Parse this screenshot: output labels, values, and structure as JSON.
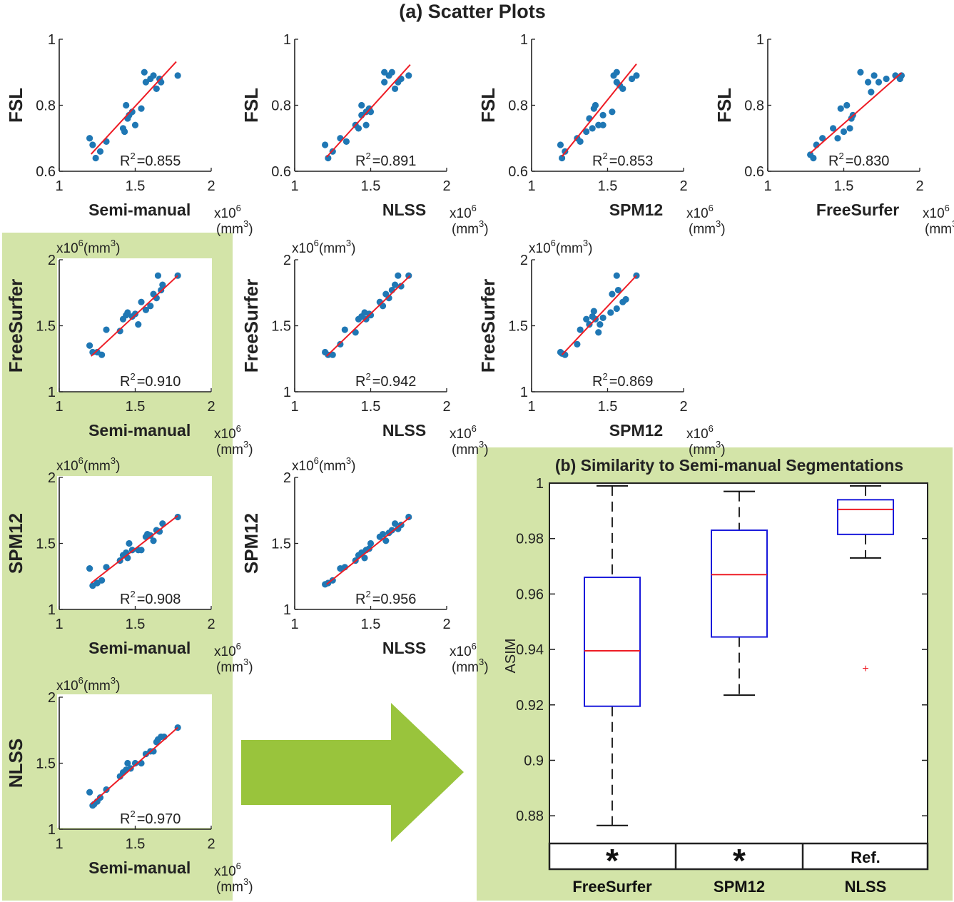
{
  "figure": {
    "title_a": "(a) Scatter Plots",
    "title_b": "(b) Similarity to Semi-manual Segmentations",
    "colors": {
      "panel_background": "#d3e4a8",
      "arrow": "#99c43c",
      "points": "#1f77b4",
      "fit_line": "#ee1c25",
      "box": "#1a1adb",
      "median": "#ee1c25",
      "whisker": "#111111"
    }
  },
  "chart_data": [
    {
      "id": "fsl-vs-semimanual",
      "type": "scatter",
      "xlabel": "Semi-manual",
      "ylabel": "FSL",
      "xunit_1": "x10",
      "xunit_exp": "6",
      "xunit_2": "(mm",
      "xunit_3": ")",
      "xlim": [
        1,
        2
      ],
      "ylim": [
        0.6,
        1
      ],
      "xticks": [
        "1",
        "1.5",
        "2"
      ],
      "yticks": [
        "0.6",
        "0.8",
        "1"
      ],
      "r2_label": "R",
      "r2_exp": "2",
      "r2_value": "=0.855",
      "fit": [
        [
          1.21,
          0.652
        ],
        [
          1.77,
          0.932
        ]
      ],
      "points": [
        [
          1.2,
          0.7
        ],
        [
          1.22,
          0.68
        ],
        [
          1.24,
          0.64
        ],
        [
          1.27,
          0.66
        ],
        [
          1.31,
          0.69
        ],
        [
          1.42,
          0.73
        ],
        [
          1.43,
          0.72
        ],
        [
          1.44,
          0.8
        ],
        [
          1.45,
          0.76
        ],
        [
          1.46,
          0.77
        ],
        [
          1.48,
          0.78
        ],
        [
          1.5,
          0.74
        ],
        [
          1.54,
          0.79
        ],
        [
          1.56,
          0.9
        ],
        [
          1.57,
          0.87
        ],
        [
          1.6,
          0.88
        ],
        [
          1.62,
          0.89
        ],
        [
          1.64,
          0.85
        ],
        [
          1.66,
          0.88
        ],
        [
          1.67,
          0.87
        ],
        [
          1.78,
          0.89
        ]
      ]
    },
    {
      "id": "fsl-vs-nlss",
      "type": "scatter",
      "xlabel": "NLSS",
      "ylabel": "FSL",
      "xunit_1": "x10",
      "xunit_exp": "6",
      "xunit_2": "(mm",
      "xunit_3": ")",
      "xlim": [
        1,
        2
      ],
      "ylim": [
        0.6,
        1
      ],
      "xticks": [
        "1",
        "1.5",
        "2"
      ],
      "yticks": [
        "0.6",
        "0.8",
        "1"
      ],
      "r2_label": "R",
      "r2_exp": "2",
      "r2_value": "=0.891",
      "fit": [
        [
          1.21,
          0.643
        ],
        [
          1.76,
          0.923
        ]
      ],
      "points": [
        [
          1.2,
          0.68
        ],
        [
          1.22,
          0.64
        ],
        [
          1.25,
          0.66
        ],
        [
          1.3,
          0.7
        ],
        [
          1.34,
          0.69
        ],
        [
          1.4,
          0.74
        ],
        [
          1.42,
          0.73
        ],
        [
          1.44,
          0.77
        ],
        [
          1.44,
          0.8
        ],
        [
          1.47,
          0.74
        ],
        [
          1.47,
          0.78
        ],
        [
          1.49,
          0.79
        ],
        [
          1.5,
          0.78
        ],
        [
          1.59,
          0.87
        ],
        [
          1.59,
          0.9
        ],
        [
          1.62,
          0.89
        ],
        [
          1.64,
          0.9
        ],
        [
          1.66,
          0.85
        ],
        [
          1.68,
          0.87
        ],
        [
          1.7,
          0.88
        ],
        [
          1.75,
          0.89
        ]
      ]
    },
    {
      "id": "fsl-vs-spm12",
      "type": "scatter",
      "xlabel": "SPM12",
      "ylabel": "FSL",
      "xunit_1": "x10",
      "xunit_exp": "6",
      "xunit_2": "(mm",
      "xunit_3": ")",
      "xlim": [
        1,
        2
      ],
      "ylim": [
        0.6,
        1
      ],
      "xticks": [
        "1",
        "1.5",
        "2"
      ],
      "yticks": [
        "0.6",
        "0.8",
        "1"
      ],
      "r2_label": "R",
      "r2_exp": "2",
      "r2_value": "=0.853",
      "fit": [
        [
          1.2,
          0.645
        ],
        [
          1.69,
          0.925
        ]
      ],
      "points": [
        [
          1.19,
          0.68
        ],
        [
          1.2,
          0.64
        ],
        [
          1.22,
          0.66
        ],
        [
          1.3,
          0.7
        ],
        [
          1.32,
          0.69
        ],
        [
          1.36,
          0.72
        ],
        [
          1.38,
          0.76
        ],
        [
          1.4,
          0.73
        ],
        [
          1.41,
          0.79
        ],
        [
          1.42,
          0.8
        ],
        [
          1.44,
          0.74
        ],
        [
          1.47,
          0.77
        ],
        [
          1.47,
          0.74
        ],
        [
          1.53,
          0.78
        ],
        [
          1.54,
          0.89
        ],
        [
          1.56,
          0.9
        ],
        [
          1.56,
          0.87
        ],
        [
          1.58,
          0.86
        ],
        [
          1.6,
          0.85
        ],
        [
          1.66,
          0.88
        ],
        [
          1.69,
          0.89
        ]
      ]
    },
    {
      "id": "fsl-vs-freesurfer",
      "type": "scatter",
      "xlabel": "FreeSurfer",
      "ylabel": "FSL",
      "xunit_1": "x10",
      "xunit_exp": "6",
      "xunit_2": "(mm",
      "xunit_3": ")",
      "xlim": [
        1,
        2
      ],
      "ylim": [
        0.6,
        1
      ],
      "xticks": [
        "1",
        "1.5",
        "2"
      ],
      "yticks": [
        "0.6",
        "0.8",
        "1"
      ],
      "r2_label": "R",
      "r2_exp": "2",
      "r2_value": "=0.830",
      "fit": [
        [
          1.28,
          0.655
        ],
        [
          1.88,
          0.898
        ]
      ],
      "points": [
        [
          1.28,
          0.65
        ],
        [
          1.3,
          0.64
        ],
        [
          1.32,
          0.68
        ],
        [
          1.36,
          0.7
        ],
        [
          1.43,
          0.73
        ],
        [
          1.46,
          0.7
        ],
        [
          1.48,
          0.79
        ],
        [
          1.5,
          0.72
        ],
        [
          1.52,
          0.8
        ],
        [
          1.54,
          0.73
        ],
        [
          1.55,
          0.76
        ],
        [
          1.56,
          0.77
        ],
        [
          1.61,
          0.9
        ],
        [
          1.66,
          0.87
        ],
        [
          1.68,
          0.84
        ],
        [
          1.7,
          0.89
        ],
        [
          1.73,
          0.87
        ],
        [
          1.78,
          0.88
        ],
        [
          1.84,
          0.89
        ],
        [
          1.87,
          0.88
        ],
        [
          1.88,
          0.89
        ]
      ]
    },
    {
      "id": "freesurfer-vs-semimanual",
      "type": "scatter",
      "xlabel": "Semi-manual",
      "ylabel": "FreeSurfer",
      "xunit_1": "x10",
      "xunit_exp": "6",
      "xunit_2": "(mm",
      "xunit_3": ")",
      "yunit_1": "x10",
      "yunit_exp": "6",
      "yunit_2": "(mm",
      "yunit_3": ")",
      "xlim": [
        1,
        2
      ],
      "ylim": [
        1,
        2
      ],
      "xticks": [
        "1",
        "1.5",
        "2"
      ],
      "yticks": [
        "1",
        "1.5",
        "2"
      ],
      "r2_label": "R",
      "r2_exp": "2",
      "r2_value": "=0.910",
      "fit": [
        [
          1.21,
          1.27
        ],
        [
          1.78,
          1.88
        ]
      ],
      "points": [
        [
          1.2,
          1.35
        ],
        [
          1.22,
          1.3
        ],
        [
          1.25,
          1.3
        ],
        [
          1.28,
          1.28
        ],
        [
          1.31,
          1.47
        ],
        [
          1.4,
          1.46
        ],
        [
          1.42,
          1.55
        ],
        [
          1.44,
          1.58
        ],
        [
          1.45,
          1.6
        ],
        [
          1.48,
          1.57
        ],
        [
          1.5,
          1.59
        ],
        [
          1.52,
          1.51
        ],
        [
          1.54,
          1.68
        ],
        [
          1.57,
          1.62
        ],
        [
          1.6,
          1.65
        ],
        [
          1.62,
          1.74
        ],
        [
          1.64,
          1.71
        ],
        [
          1.65,
          1.88
        ],
        [
          1.67,
          1.77
        ],
        [
          1.68,
          1.81
        ],
        [
          1.78,
          1.88
        ]
      ]
    },
    {
      "id": "freesurfer-vs-nlss",
      "type": "scatter",
      "xlabel": "NLSS",
      "ylabel": "FreeSurfer",
      "xunit_1": "x10",
      "xunit_exp": "6",
      "xunit_2": "(mm",
      "xunit_3": ")",
      "yunit_1": "x10",
      "yunit_exp": "6",
      "yunit_2": "(mm",
      "yunit_3": ")",
      "xlim": [
        1,
        2
      ],
      "ylim": [
        1,
        2
      ],
      "xticks": [
        "1",
        "1.5",
        "2"
      ],
      "yticks": [
        "1",
        "1.5",
        "2"
      ],
      "r2_label": "R",
      "r2_exp": "2",
      "r2_value": "=0.942",
      "fit": [
        [
          1.21,
          1.27
        ],
        [
          1.76,
          1.88
        ]
      ],
      "points": [
        [
          1.2,
          1.3
        ],
        [
          1.22,
          1.28
        ],
        [
          1.25,
          1.28
        ],
        [
          1.3,
          1.36
        ],
        [
          1.33,
          1.47
        ],
        [
          1.4,
          1.45
        ],
        [
          1.42,
          1.55
        ],
        [
          1.44,
          1.57
        ],
        [
          1.46,
          1.6
        ],
        [
          1.47,
          1.55
        ],
        [
          1.49,
          1.59
        ],
        [
          1.5,
          1.58
        ],
        [
          1.56,
          1.68
        ],
        [
          1.58,
          1.65
        ],
        [
          1.6,
          1.74
        ],
        [
          1.62,
          1.71
        ],
        [
          1.64,
          1.77
        ],
        [
          1.66,
          1.81
        ],
        [
          1.68,
          1.88
        ],
        [
          1.7,
          1.8
        ],
        [
          1.75,
          1.88
        ]
      ]
    },
    {
      "id": "freesurfer-vs-spm12",
      "type": "scatter",
      "xlabel": "SPM12",
      "ylabel": "FreeSurfer",
      "xunit_1": "x10",
      "xunit_exp": "6",
      "xunit_2": "(mm",
      "xunit_3": ")",
      "yunit_1": "x10",
      "yunit_exp": "6",
      "yunit_2": "(mm",
      "yunit_3": ")",
      "xlim": [
        1,
        2
      ],
      "ylim": [
        1,
        2
      ],
      "xticks": [
        "1",
        "1.5",
        "2"
      ],
      "yticks": [
        "1",
        "1.5",
        "2"
      ],
      "r2_label": "R",
      "r2_exp": "2",
      "r2_value": "=0.869",
      "fit": [
        [
          1.2,
          1.28
        ],
        [
          1.69,
          1.88
        ]
      ],
      "points": [
        [
          1.19,
          1.3
        ],
        [
          1.2,
          1.29
        ],
        [
          1.22,
          1.28
        ],
        [
          1.3,
          1.36
        ],
        [
          1.32,
          1.47
        ],
        [
          1.36,
          1.55
        ],
        [
          1.38,
          1.51
        ],
        [
          1.4,
          1.57
        ],
        [
          1.41,
          1.61
        ],
        [
          1.42,
          1.55
        ],
        [
          1.44,
          1.45
        ],
        [
          1.45,
          1.51
        ],
        [
          1.47,
          1.56
        ],
        [
          1.52,
          1.6
        ],
        [
          1.53,
          1.74
        ],
        [
          1.56,
          1.63
        ],
        [
          1.56,
          1.88
        ],
        [
          1.57,
          1.77
        ],
        [
          1.6,
          1.68
        ],
        [
          1.62,
          1.7
        ],
        [
          1.69,
          1.88
        ]
      ]
    },
    {
      "id": "spm12-vs-semimanual",
      "type": "scatter",
      "xlabel": "Semi-manual",
      "ylabel": "SPM12",
      "xunit_1": "x10",
      "xunit_exp": "6",
      "xunit_2": "(mm",
      "xunit_3": ")",
      "yunit_1": "x10",
      "yunit_exp": "6",
      "yunit_2": "(mm",
      "yunit_3": ")",
      "xlim": [
        1,
        2
      ],
      "ylim": [
        1,
        2
      ],
      "xticks": [
        "1",
        "1.5",
        "2"
      ],
      "yticks": [
        "1",
        "1.5",
        "2"
      ],
      "r2_label": "R",
      "r2_exp": "2",
      "r2_value": "=0.908",
      "fit": [
        [
          1.21,
          1.2
        ],
        [
          1.78,
          1.71
        ]
      ],
      "points": [
        [
          1.2,
          1.31
        ],
        [
          1.22,
          1.18
        ],
        [
          1.25,
          1.2
        ],
        [
          1.28,
          1.22
        ],
        [
          1.31,
          1.32
        ],
        [
          1.4,
          1.37
        ],
        [
          1.42,
          1.41
        ],
        [
          1.44,
          1.43
        ],
        [
          1.45,
          1.39
        ],
        [
          1.46,
          1.5
        ],
        [
          1.48,
          1.45
        ],
        [
          1.52,
          1.45
        ],
        [
          1.54,
          1.45
        ],
        [
          1.57,
          1.55
        ],
        [
          1.58,
          1.57
        ],
        [
          1.6,
          1.56
        ],
        [
          1.62,
          1.52
        ],
        [
          1.64,
          1.6
        ],
        [
          1.66,
          1.59
        ],
        [
          1.68,
          1.65
        ],
        [
          1.78,
          1.7
        ]
      ]
    },
    {
      "id": "spm12-vs-nlss",
      "type": "scatter",
      "xlabel": "NLSS",
      "ylabel": "SPM12",
      "xunit_1": "x10",
      "xunit_exp": "6",
      "xunit_2": "(mm",
      "xunit_3": ")",
      "yunit_1": "x10",
      "yunit_exp": "6",
      "yunit_2": "(mm",
      "yunit_3": ")",
      "xlim": [
        1,
        2
      ],
      "ylim": [
        1,
        2
      ],
      "xticks": [
        "1",
        "1.5",
        "2"
      ],
      "yticks": [
        "1",
        "1.5",
        "2"
      ],
      "r2_label": "R",
      "r2_exp": "2",
      "r2_value": "=0.956",
      "fit": [
        [
          1.21,
          1.19
        ],
        [
          1.76,
          1.7
        ]
      ],
      "points": [
        [
          1.2,
          1.19
        ],
        [
          1.22,
          1.2
        ],
        [
          1.25,
          1.22
        ],
        [
          1.3,
          1.31
        ],
        [
          1.33,
          1.32
        ],
        [
          1.4,
          1.37
        ],
        [
          1.42,
          1.41
        ],
        [
          1.44,
          1.43
        ],
        [
          1.46,
          1.39
        ],
        [
          1.47,
          1.45
        ],
        [
          1.49,
          1.46
        ],
        [
          1.5,
          1.5
        ],
        [
          1.56,
          1.55
        ],
        [
          1.58,
          1.57
        ],
        [
          1.6,
          1.52
        ],
        [
          1.62,
          1.58
        ],
        [
          1.64,
          1.6
        ],
        [
          1.66,
          1.65
        ],
        [
          1.68,
          1.61
        ],
        [
          1.7,
          1.64
        ],
        [
          1.75,
          1.7
        ]
      ]
    },
    {
      "id": "nlss-vs-semimanual",
      "type": "scatter",
      "xlabel": "Semi-manual",
      "ylabel": "NLSS",
      "xunit_1": "x10",
      "xunit_exp": "6",
      "xunit_2": "(mm",
      "xunit_3": ")",
      "yunit_1": "x10",
      "yunit_exp": "6",
      "yunit_2": "(mm",
      "yunit_3": ")",
      "xlim": [
        1,
        2
      ],
      "ylim": [
        1,
        2
      ],
      "xticks": [
        "1",
        "1.5",
        "2"
      ],
      "yticks": [
        "1",
        "1.5",
        "2"
      ],
      "r2_label": "R",
      "r2_exp": "2",
      "r2_value": "=0.970",
      "fit": [
        [
          1.21,
          1.19
        ],
        [
          1.78,
          1.77
        ]
      ],
      "points": [
        [
          1.2,
          1.28
        ],
        [
          1.22,
          1.18
        ],
        [
          1.23,
          1.19
        ],
        [
          1.25,
          1.21
        ],
        [
          1.27,
          1.24
        ],
        [
          1.31,
          1.3
        ],
        [
          1.4,
          1.4
        ],
        [
          1.42,
          1.43
        ],
        [
          1.44,
          1.45
        ],
        [
          1.45,
          1.5
        ],
        [
          1.47,
          1.46
        ],
        [
          1.5,
          1.5
        ],
        [
          1.54,
          1.5
        ],
        [
          1.57,
          1.57
        ],
        [
          1.6,
          1.59
        ],
        [
          1.62,
          1.59
        ],
        [
          1.64,
          1.66
        ],
        [
          1.65,
          1.68
        ],
        [
          1.67,
          1.7
        ],
        [
          1.69,
          1.7
        ],
        [
          1.78,
          1.77
        ]
      ]
    },
    {
      "id": "asim-boxplot",
      "type": "box",
      "ylabel": "ASIM",
      "ylim": [
        0.87,
        1.0
      ],
      "yticks": [
        "0.88",
        "0.9",
        "0.92",
        "0.94",
        "0.96",
        "0.98",
        "1"
      ],
      "categories": [
        "FreeSurfer",
        "SPM12",
        "NLSS"
      ],
      "significance": [
        "*",
        "*",
        "Ref."
      ],
      "boxes": [
        {
          "name": "FreeSurfer",
          "whisker_low": 0.8765,
          "q1": 0.9195,
          "median": 0.9395,
          "q3": 0.966,
          "whisker_high": 0.999,
          "outliers": []
        },
        {
          "name": "SPM12",
          "whisker_low": 0.9235,
          "q1": 0.9445,
          "median": 0.967,
          "q3": 0.983,
          "whisker_high": 0.997,
          "outliers": []
        },
        {
          "name": "NLSS",
          "whisker_low": 0.973,
          "q1": 0.9815,
          "median": 0.9905,
          "q3": 0.994,
          "whisker_high": 0.999,
          "outliers": [
            0.9333
          ]
        }
      ]
    }
  ]
}
